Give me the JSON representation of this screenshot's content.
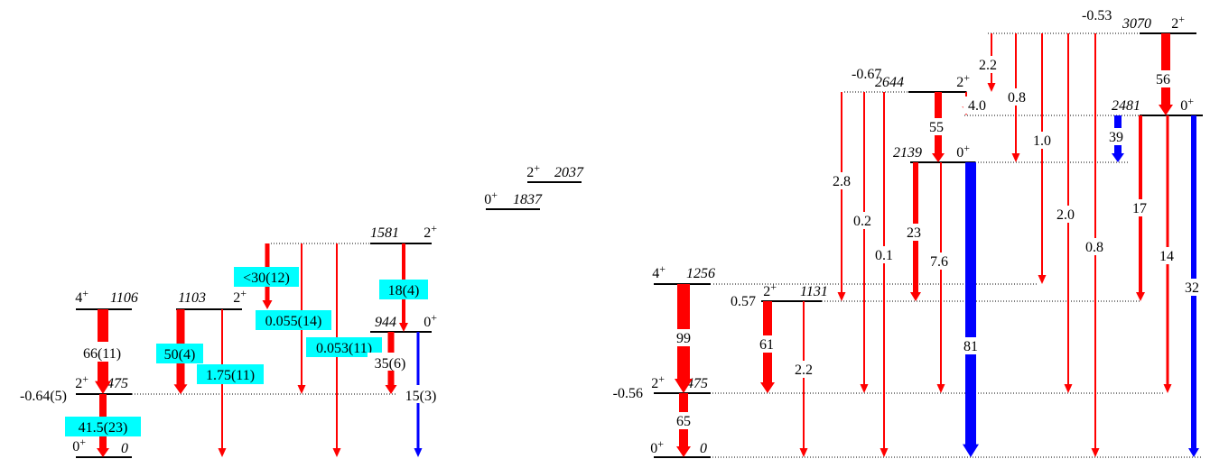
{
  "colors": {
    "e2_arrow": "#ff0000",
    "e0_arrow": "#0000ff",
    "highlight": "#00ffff",
    "level": "#000000",
    "guide": "#000000"
  },
  "left_scheme": {
    "levels": [
      {
        "id": "L0",
        "spin": "0+",
        "energy": "0"
      },
      {
        "id": "L475a",
        "spin": "2+",
        "energy": "475",
        "moment": "-0.64(5)"
      },
      {
        "id": "L1106",
        "spin": "4+",
        "energy": "1106"
      },
      {
        "id": "L1103",
        "spin": "2+",
        "energy": "1103"
      },
      {
        "id": "L944",
        "spin": "0+",
        "energy": "944"
      },
      {
        "id": "L1581",
        "spin": "2+",
        "energy": "1581"
      }
    ],
    "transitions": [
      {
        "id": "T1",
        "label": "66(11)",
        "kind": "e2"
      },
      {
        "id": "T2",
        "label": "41.5(23)",
        "kind": "e2"
      },
      {
        "id": "T3",
        "label": "50(4)",
        "kind": "e2"
      },
      {
        "id": "T4",
        "label": "1.75(11)",
        "kind": "e2"
      },
      {
        "id": "T5",
        "label": "<30(12)",
        "kind": "e2"
      },
      {
        "id": "T6",
        "label": "0.055(14)",
        "kind": "e2"
      },
      {
        "id": "T7",
        "label": "0.053(11)",
        "kind": "e2"
      },
      {
        "id": "T8",
        "label": "18(4)",
        "kind": "e2"
      },
      {
        "id": "T9",
        "label": "35(6)",
        "kind": "e2"
      },
      {
        "id": "T10",
        "label": "15(3)",
        "kind": "e0"
      }
    ]
  },
  "middle_levels": [
    {
      "id": "M1837",
      "spin": "0+",
      "energy": "1837"
    },
    {
      "id": "M2037",
      "spin": "2+",
      "energy": "2037"
    }
  ],
  "right_scheme": {
    "levels": [
      {
        "id": "R0",
        "spin": "0+",
        "energy": "0"
      },
      {
        "id": "R475",
        "spin": "2+",
        "energy": "475",
        "moment": "-0.56"
      },
      {
        "id": "R1256",
        "spin": "4+",
        "energy": "1256"
      },
      {
        "id": "R1131",
        "spin": "2+",
        "energy": "1131",
        "moment": "0.57"
      },
      {
        "id": "R2139",
        "spin": "0+",
        "energy": "2139"
      },
      {
        "id": "R2644",
        "spin": "2+",
        "energy": "2644",
        "moment": "-0.67"
      },
      {
        "id": "R2481",
        "spin": "0+",
        "energy": "2481"
      },
      {
        "id": "R3070",
        "spin": "2+",
        "energy": "3070",
        "moment": "-0.53"
      }
    ],
    "transitions": [
      {
        "id": "U1",
        "label": "99",
        "kind": "e2"
      },
      {
        "id": "U2",
        "label": "65",
        "kind": "e2"
      },
      {
        "id": "U3",
        "label": "61",
        "kind": "e2"
      },
      {
        "id": "U4",
        "label": "2.2",
        "kind": "e2"
      },
      {
        "id": "U5",
        "label": "2.8",
        "kind": "e2"
      },
      {
        "id": "U6",
        "label": "0.2",
        "kind": "e2"
      },
      {
        "id": "U7",
        "label": "0.1",
        "kind": "e2"
      },
      {
        "id": "U8",
        "label": "55",
        "kind": "e2"
      },
      {
        "id": "U9",
        "label": "23",
        "kind": "e2"
      },
      {
        "id": "U10",
        "label": "7.6",
        "kind": "e2"
      },
      {
        "id": "U11",
        "label": "81",
        "kind": "e0"
      },
      {
        "id": "U12",
        "label": "4.0",
        "kind": "e2"
      },
      {
        "id": "U13",
        "label": "2.2",
        "kind": "e2"
      },
      {
        "id": "U14",
        "label": "0.8",
        "kind": "e2"
      },
      {
        "id": "U15",
        "label": "1.0",
        "kind": "e2"
      },
      {
        "id": "U16",
        "label": "2.0",
        "kind": "e2"
      },
      {
        "id": "U17",
        "label": "0.8",
        "kind": "e2"
      },
      {
        "id": "U18",
        "label": "56",
        "kind": "e2"
      },
      {
        "id": "U19",
        "label": "39",
        "kind": "e0"
      },
      {
        "id": "U20",
        "label": "17",
        "kind": "e2"
      },
      {
        "id": "U21",
        "label": "14",
        "kind": "e2"
      },
      {
        "id": "U22",
        "label": "32",
        "kind": "e0"
      }
    ]
  }
}
